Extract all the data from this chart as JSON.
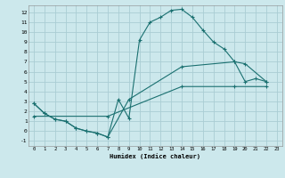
{
  "title": "",
  "xlabel": "Humidex (Indice chaleur)",
  "background_color": "#cce8ec",
  "grid_color": "#aacdd4",
  "line_color": "#1a7070",
  "xlim": [
    -0.5,
    23.5
  ],
  "ylim": [
    -1.5,
    12.7
  ],
  "xticks": [
    0,
    1,
    2,
    3,
    4,
    5,
    6,
    7,
    8,
    9,
    10,
    11,
    12,
    13,
    14,
    15,
    16,
    17,
    18,
    19,
    20,
    21,
    22,
    23
  ],
  "yticks": [
    -1,
    0,
    1,
    2,
    3,
    4,
    5,
    6,
    7,
    8,
    9,
    10,
    11,
    12
  ],
  "curve1_x": [
    0,
    1,
    2,
    3,
    4,
    5,
    6,
    7,
    8,
    9,
    10,
    11,
    12,
    13,
    14,
    15,
    16,
    17,
    18,
    19,
    20,
    21,
    22
  ],
  "curve1_y": [
    2.8,
    1.8,
    1.2,
    1.0,
    0.3,
    0.0,
    -0.2,
    -0.6,
    3.2,
    1.3,
    9.2,
    11.0,
    11.5,
    12.2,
    12.3,
    11.5,
    10.2,
    9.0,
    8.3,
    7.0,
    5.0,
    5.3,
    5.0
  ],
  "curve2_x": [
    0,
    1,
    2,
    3,
    4,
    5,
    6,
    7,
    9,
    14,
    19,
    20,
    22
  ],
  "curve2_y": [
    2.8,
    1.8,
    1.2,
    1.0,
    0.3,
    0.0,
    -0.2,
    -0.6,
    3.2,
    6.5,
    7.0,
    6.8,
    5.0
  ],
  "curve3_x": [
    0,
    7,
    14,
    19,
    22
  ],
  "curve3_y": [
    1.5,
    1.5,
    4.5,
    4.5,
    4.5
  ]
}
